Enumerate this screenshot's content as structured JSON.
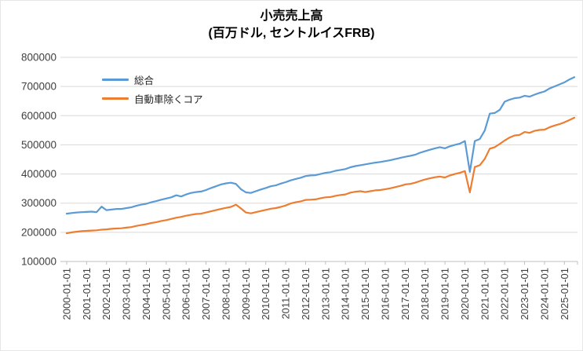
{
  "title": {
    "line1": "小売売上高",
    "line2": "(百万ドル, セントルイスFRB)"
  },
  "colors": {
    "series_total": "#5B9BD5",
    "series_ex_auto": "#ED7D31",
    "gridline": "#D9D9D9",
    "axis_line": "#BFBFBF",
    "tick_label": "#404040",
    "background": "#FFFFFF"
  },
  "chart_data": {
    "type": "line",
    "title": "小売売上高 (百万ドル, セントルイスFRB)",
    "xlabel": "",
    "ylabel": "",
    "ylim": [
      100000,
      800000
    ],
    "y_tick_step": 100000,
    "y_ticks": [
      100000,
      200000,
      300000,
      400000,
      500000,
      600000,
      700000,
      800000
    ],
    "grid": true,
    "legend_position": "top-left-inside",
    "x_tick_labels": [
      "2000-01-01",
      "2001-01-01",
      "2002-01-01",
      "2003-01-01",
      "2004-01-01",
      "2005-01-01",
      "2006-01-01",
      "2007-01-01",
      "2008-01-01",
      "2009-01-01",
      "2010-01-01",
      "2011-01-01",
      "2012-01-01",
      "2013-01-01",
      "2014-01-01",
      "2015-01-01",
      "2016-01-01",
      "2017-01-01",
      "2018-01-01",
      "2019-01-01",
      "2020-01-01",
      "2021-01-01",
      "2022-01-01",
      "2023-01-01",
      "2024-01-01",
      "2025-01-01"
    ],
    "x": [
      "2000-01",
      "2000-04",
      "2000-07",
      "2000-10",
      "2001-01",
      "2001-04",
      "2001-07",
      "2001-10",
      "2002-01",
      "2002-04",
      "2002-07",
      "2002-10",
      "2003-01",
      "2003-04",
      "2003-07",
      "2003-10",
      "2004-01",
      "2004-04",
      "2004-07",
      "2004-10",
      "2005-01",
      "2005-04",
      "2005-07",
      "2005-10",
      "2006-01",
      "2006-04",
      "2006-07",
      "2006-10",
      "2007-01",
      "2007-04",
      "2007-07",
      "2007-10",
      "2008-01",
      "2008-04",
      "2008-07",
      "2008-10",
      "2009-01",
      "2009-04",
      "2009-07",
      "2009-10",
      "2010-01",
      "2010-04",
      "2010-07",
      "2010-10",
      "2011-01",
      "2011-04",
      "2011-07",
      "2011-10",
      "2012-01",
      "2012-04",
      "2012-07",
      "2012-10",
      "2013-01",
      "2013-04",
      "2013-07",
      "2013-10",
      "2014-01",
      "2014-04",
      "2014-07",
      "2014-10",
      "2015-01",
      "2015-04",
      "2015-07",
      "2015-10",
      "2016-01",
      "2016-04",
      "2016-07",
      "2016-10",
      "2017-01",
      "2017-04",
      "2017-07",
      "2017-10",
      "2018-01",
      "2018-04",
      "2018-07",
      "2018-10",
      "2019-01",
      "2019-04",
      "2019-07",
      "2019-10",
      "2020-01",
      "2020-04",
      "2020-07",
      "2020-10",
      "2021-01",
      "2021-04",
      "2021-07",
      "2021-10",
      "2022-01",
      "2022-04",
      "2022-07",
      "2022-10",
      "2023-01",
      "2023-04",
      "2023-07",
      "2023-10",
      "2024-01",
      "2024-04",
      "2024-07",
      "2024-10",
      "2025-01",
      "2025-04",
      "2025-07"
    ],
    "series": [
      {
        "name": "総合",
        "color": "#5B9BD5",
        "values": [
          264000,
          266000,
          268000,
          269000,
          270000,
          271000,
          269000,
          288000,
          276000,
          278000,
          280000,
          280000,
          283000,
          286000,
          291000,
          295000,
          298000,
          303000,
          307000,
          312000,
          316000,
          320000,
          327000,
          323000,
          330000,
          335000,
          338000,
          340000,
          345000,
          352000,
          358000,
          364000,
          368000,
          370000,
          366000,
          348000,
          337000,
          335000,
          341000,
          347000,
          352000,
          358000,
          361000,
          367000,
          372000,
          378000,
          383000,
          387000,
          393000,
          395000,
          396000,
          400000,
          404000,
          406000,
          411000,
          414000,
          417000,
          423000,
          427000,
          430000,
          433000,
          436000,
          439000,
          441000,
          444000,
          447000,
          451000,
          455000,
          459000,
          462000,
          466000,
          473000,
          478000,
          483000,
          488000,
          492000,
          488000,
          495000,
          500000,
          504000,
          513000,
          407000,
          513000,
          520000,
          549000,
          607000,
          609000,
          620000,
          648000,
          655000,
          660000,
          662000,
          668000,
          665000,
          672000,
          678000,
          683000,
          693000,
          700000,
          707000,
          714000,
          724000,
          732000
        ]
      },
      {
        "name": "自動車除くコア",
        "color": "#ED7D31",
        "values": [
          197000,
          200000,
          202000,
          204000,
          205000,
          206000,
          207000,
          209000,
          210000,
          212000,
          213000,
          214000,
          216000,
          218000,
          222000,
          225000,
          228000,
          232000,
          235000,
          239000,
          242000,
          246000,
          250000,
          253000,
          257000,
          260000,
          263000,
          264000,
          268000,
          272000,
          276000,
          280000,
          284000,
          287000,
          295000,
          282000,
          268000,
          265000,
          269000,
          273000,
          277000,
          281000,
          283000,
          287000,
          292000,
          299000,
          303000,
          306000,
          311000,
          312000,
          313000,
          317000,
          320000,
          321000,
          325000,
          328000,
          330000,
          336000,
          339000,
          341000,
          338000,
          341000,
          344000,
          345000,
          348000,
          351000,
          355000,
          359000,
          364000,
          366000,
          370000,
          376000,
          381000,
          385000,
          389000,
          391000,
          388000,
          395000,
          400000,
          404000,
          410000,
          337000,
          424000,
          430000,
          452000,
          487000,
          492000,
          503000,
          515000,
          525000,
          532000,
          534000,
          544000,
          541000,
          548000,
          551000,
          552000,
          560000,
          566000,
          571000,
          577000,
          585000,
          593000
        ]
      }
    ]
  }
}
